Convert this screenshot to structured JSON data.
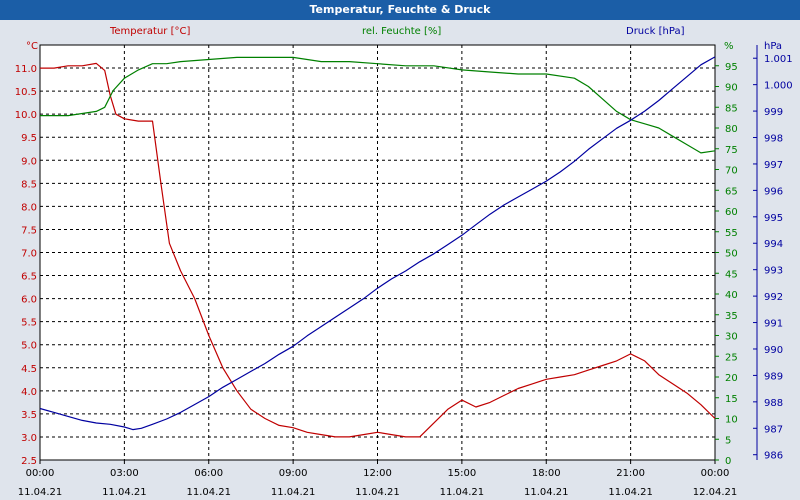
{
  "window": {
    "title": "Temperatur, Feuchte & Druck"
  },
  "colors": {
    "temperature": "#c00000",
    "humidity": "#008000",
    "pressure": "#0000a0",
    "grid": "#000000",
    "background": "#ffffff",
    "titlebar": "#1b5ea7"
  },
  "chart_data": {
    "type": "line",
    "title": "Temperatur, Feuchte & Druck",
    "grid": true,
    "x_ticks": [
      {
        "hours": 0,
        "time": "00:00",
        "date": "11.04.21"
      },
      {
        "hours": 3,
        "time": "03:00",
        "date": "11.04.21"
      },
      {
        "hours": 6,
        "time": "06:00",
        "date": "11.04.21"
      },
      {
        "hours": 9,
        "time": "09:00",
        "date": "11.04.21"
      },
      {
        "hours": 12,
        "time": "12:00",
        "date": "11.04.21"
      },
      {
        "hours": 15,
        "time": "15:00",
        "date": "11.04.21"
      },
      {
        "hours": 18,
        "time": "18:00",
        "date": "11.04.21"
      },
      {
        "hours": 21,
        "time": "21:00",
        "date": "11.04.21"
      },
      {
        "hours": 24,
        "time": "00:00",
        "date": "12.04.21"
      }
    ],
    "x_range": [
      0,
      24
    ],
    "axes": {
      "temperature": {
        "label": "Temperatur [°C]",
        "unit": "°C",
        "range": [
          2.5,
          11.5
        ],
        "ticks": [
          "2.5",
          "3.0",
          "3.5",
          "4.0",
          "4.5",
          "5.0",
          "5.5",
          "6.0",
          "6.5",
          "7.0",
          "7.5",
          "8.0",
          "8.5",
          "9.0",
          "9.5",
          "10.0",
          "10.5",
          "11.0"
        ]
      },
      "humidity": {
        "label": "rel. Feuchte [%]",
        "unit": "%",
        "range": [
          0,
          100
        ],
        "ticks": [
          "0",
          "5",
          "10",
          "15",
          "20",
          "25",
          "30",
          "35",
          "40",
          "45",
          "50",
          "55",
          "60",
          "65",
          "70",
          "75",
          "80",
          "85",
          "90",
          "95"
        ]
      },
      "pressure": {
        "label": "Druck [hPa]",
        "unit": "hPa",
        "range": [
          985.8,
          1001.5
        ],
        "ticks": [
          "986",
          "987",
          "988",
          "989",
          "990",
          "991",
          "992",
          "993",
          "994",
          "995",
          "996",
          "997",
          "998",
          "999",
          "1.000",
          "1.001"
        ]
      }
    },
    "series": [
      {
        "name": "Temperatur [°C]",
        "axis": "temperature",
        "x": [
          0,
          0.5,
          1,
          1.5,
          2,
          2.3,
          2.5,
          2.7,
          3,
          3.5,
          4,
          4.3,
          4.6,
          5,
          5.5,
          6,
          6.5,
          7,
          7.5,
          8,
          8.5,
          9,
          9.5,
          10,
          10.5,
          11,
          11.5,
          12,
          12.5,
          13,
          13.5,
          14,
          14.5,
          15,
          15.5,
          16,
          16.5,
          17,
          17.5,
          18,
          18.5,
          19,
          19.5,
          20,
          20.5,
          21,
          21.5,
          22,
          22.5,
          23,
          23.5,
          24
        ],
        "values": [
          11.0,
          11.0,
          11.05,
          11.05,
          11.1,
          10.95,
          10.4,
          10.0,
          9.9,
          9.85,
          9.85,
          8.5,
          7.2,
          6.6,
          6.0,
          5.2,
          4.5,
          4.0,
          3.6,
          3.4,
          3.25,
          3.2,
          3.1,
          3.05,
          3.0,
          3.0,
          3.05,
          3.1,
          3.05,
          3.0,
          3.0,
          3.3,
          3.6,
          3.8,
          3.65,
          3.75,
          3.9,
          4.05,
          4.15,
          4.25,
          4.3,
          4.35,
          4.45,
          4.55,
          4.65,
          4.8,
          4.65,
          4.35,
          4.15,
          3.95,
          3.7,
          3.4
        ]
      },
      {
        "name": "rel. Feuchte [%]",
        "axis": "humidity",
        "x": [
          0,
          1,
          2,
          2.3,
          2.6,
          3,
          3.5,
          4,
          4.5,
          5,
          6,
          7,
          8,
          9,
          10,
          11,
          12,
          13,
          14,
          15,
          16,
          17,
          18,
          19,
          19.5,
          20,
          20.5,
          21,
          21.5,
          22,
          22.5,
          23,
          23.5,
          24
        ],
        "values": [
          83,
          83,
          84,
          85,
          89,
          92,
          94,
          95.5,
          95.5,
          96,
          96.5,
          97,
          97,
          97,
          96,
          96,
          95.5,
          95,
          95,
          94,
          93.5,
          93,
          93,
          92,
          90,
          87,
          84,
          82,
          81,
          80,
          78,
          76,
          74,
          74.5
        ]
      },
      {
        "name": "Druck [hPa]",
        "axis": "pressure",
        "x": [
          0,
          0.5,
          1,
          1.5,
          2,
          2.5,
          3,
          3.3,
          3.6,
          4,
          4.5,
          5,
          5.5,
          6,
          6.5,
          7,
          7.5,
          8,
          8.5,
          9,
          9.5,
          10,
          10.5,
          11,
          11.5,
          12,
          12.5,
          13,
          13.5,
          14,
          14.5,
          15,
          15.5,
          16,
          16.5,
          17,
          17.5,
          18,
          18.5,
          19,
          19.5,
          20,
          20.5,
          21,
          21.5,
          22,
          22.5,
          23,
          23.5,
          24
        ],
        "values": [
          987.75,
          987.6,
          987.45,
          987.3,
          987.2,
          987.15,
          987.05,
          986.95,
          987.0,
          987.15,
          987.35,
          987.6,
          987.9,
          988.2,
          988.55,
          988.85,
          989.15,
          989.45,
          989.8,
          990.1,
          990.5,
          990.85,
          991.2,
          991.55,
          991.9,
          992.3,
          992.65,
          992.95,
          993.3,
          993.6,
          993.95,
          994.3,
          994.7,
          995.1,
          995.45,
          995.75,
          996.05,
          996.35,
          996.7,
          997.1,
          997.55,
          997.95,
          998.35,
          998.65,
          999.0,
          999.4,
          999.85,
          1000.3,
          1000.75,
          1001.05
        ]
      }
    ]
  }
}
